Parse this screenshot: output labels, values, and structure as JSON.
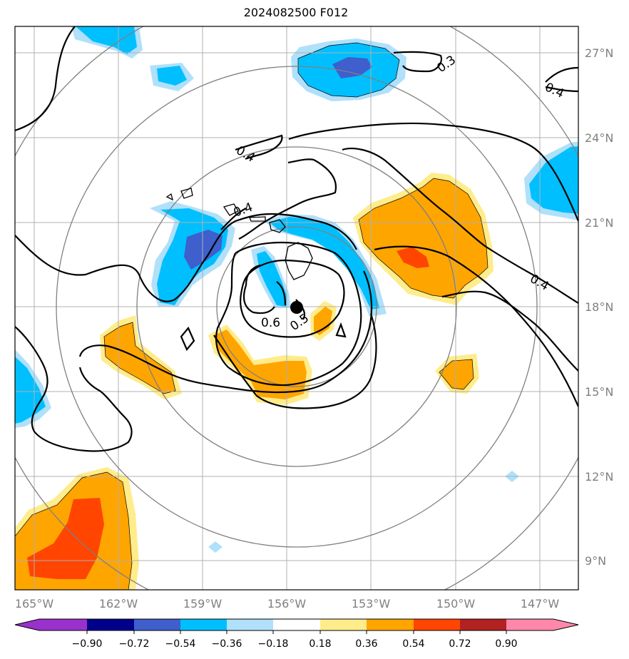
{
  "title": "2024082500 F012",
  "chart_data": {
    "type": "map",
    "title": "2024082500 F012",
    "lon_range": [
      -165.8,
      -145.6
    ],
    "lat_range": [
      8.0,
      28.0
    ],
    "x_ticks": [
      "165°W",
      "162°W",
      "159°W",
      "156°W",
      "153°W",
      "150°W",
      "147°W"
    ],
    "x_tick_values": [
      -165,
      -162,
      -159,
      -156,
      -153,
      -150,
      -147
    ],
    "y_ticks": [
      "9°N",
      "12°N",
      "15°N",
      "18°N",
      "21°N",
      "24°N",
      "27°N"
    ],
    "y_tick_values": [
      9,
      12,
      15,
      18,
      21,
      24,
      27
    ],
    "grid": true,
    "center": {
      "lon": -155.65,
      "lat": 18.0
    },
    "range_rings_deg": [
      2.9,
      5.7,
      8.6,
      11.4
    ],
    "contour_labels": [
      {
        "text": "0.3",
        "lon": -150.5,
        "lat": 26.6
      },
      {
        "text": "0.4",
        "lon": -146.0,
        "lat": 25.7
      },
      {
        "text": "0.4",
        "lon": -157.5,
        "lat": 23.6
      },
      {
        "text": "0.4",
        "lon": -157.4,
        "lat": 21.4
      },
      {
        "text": "0.4",
        "lon": -146.6,
        "lat": 19.0
      },
      {
        "text": "0.6",
        "lon": -156.4,
        "lat": 17.45
      },
      {
        "text": "0.5",
        "lon": -155.2,
        "lat": 17.45
      }
    ],
    "colorbar": {
      "ticks": [
        "−0.90",
        "−0.72",
        "−0.54",
        "−0.36",
        "−0.18",
        "0.18",
        "0.36",
        "0.54",
        "0.72",
        "0.90"
      ],
      "colors": [
        "#9932cc",
        "#00008b",
        "#3e5fcc",
        "#00bfff",
        "#b0e0fa",
        "#ffffff",
        "#ffec8b",
        "#ffa500",
        "#ff4500",
        "#b22222",
        "#ff88aa"
      ]
    }
  }
}
